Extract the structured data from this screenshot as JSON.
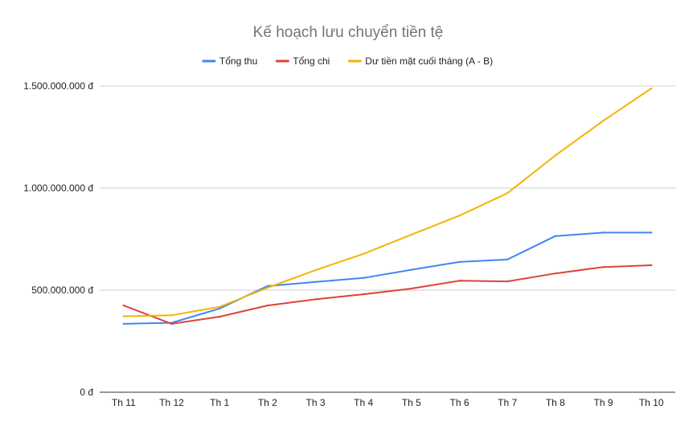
{
  "chart_data": {
    "type": "line",
    "title": "Kế hoạch lưu chuyển tiền tệ",
    "xlabel": "",
    "ylabel": "",
    "categories": [
      "Th 11",
      "Th 12",
      "Th 1",
      "Th 2",
      "Th 3",
      "Th 4",
      "Th 5",
      "Th 6",
      "Th 7",
      "Th 8",
      "Th 9",
      "Th 10"
    ],
    "y_ticks": [
      0,
      500000000,
      1000000000,
      1500000000
    ],
    "y_tick_labels": [
      "0 đ",
      "500.000.000 đ",
      "1.000.000.000 đ",
      "1.500.000.000 đ"
    ],
    "ylim": [
      0,
      1500000000
    ],
    "grid": true,
    "legend_position": "top",
    "series": [
      {
        "name": "Tổng thu",
        "color": "#4285f4",
        "values": [
          335000000,
          340000000,
          410000000,
          520000000,
          540000000,
          560000000,
          600000000,
          638000000,
          650000000,
          765000000,
          782000000,
          782000000
        ]
      },
      {
        "name": "Tổng chi",
        "color": "#db4437",
        "values": [
          425000000,
          335000000,
          370000000,
          425000000,
          455000000,
          480000000,
          508000000,
          546000000,
          543000000,
          582000000,
          613000000,
          622000000
        ]
      },
      {
        "name": "Dư tiền mặt cuối tháng (A - B)",
        "color": "#f4b400",
        "values": [
          372000000,
          377000000,
          418000000,
          512000000,
          598000000,
          678000000,
          772000000,
          865000000,
          975000000,
          1160000000,
          1330000000,
          1488000000
        ]
      }
    ]
  }
}
